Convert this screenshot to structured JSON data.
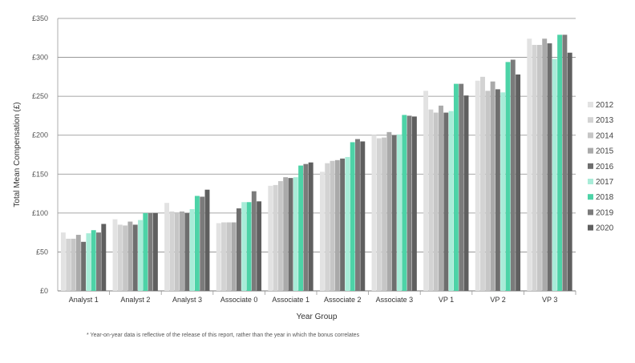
{
  "chart_data": {
    "type": "bar",
    "xlabel": "Year Group",
    "ylabel": "Total Mean Compensation (£)",
    "ylim": [
      0,
      350
    ],
    "yticks": [
      0,
      50,
      100,
      150,
      200,
      250,
      300,
      350
    ],
    "ytick_labels": [
      "£0",
      "£50",
      "£100",
      "£150",
      "£200",
      "£250",
      "£300",
      "£350"
    ],
    "grid": true,
    "legend_position": "right",
    "categories": [
      "Analyst 1",
      "Analyst 2",
      "Analyst 3",
      "Associate 0",
      "Associate 1",
      "Associate 2",
      "Associate 3",
      "VP 1",
      "VP 2",
      "VP 3"
    ],
    "series": [
      {
        "name": "2012",
        "color": "#e2e2e2",
        "values": [
          75,
          92,
          113,
          87,
          135,
          153,
          200,
          257,
          270,
          324
        ]
      },
      {
        "name": "2013",
        "color": "#d3d3d3",
        "values": [
          67,
          85,
          102,
          88,
          136,
          164,
          196,
          233,
          275,
          316
        ]
      },
      {
        "name": "2014",
        "color": "#c6c6c6",
        "values": [
          67,
          84,
          101,
          88,
          141,
          167,
          197,
          229,
          257,
          316
        ]
      },
      {
        "name": "2015",
        "color": "#aaaaaa",
        "values": [
          72,
          89,
          102,
          88,
          146,
          168,
          204,
          238,
          269,
          324
        ]
      },
      {
        "name": "2016",
        "color": "#6e6e6e",
        "values": [
          63,
          85,
          100,
          106,
          145,
          170,
          200,
          229,
          259,
          318
        ]
      },
      {
        "name": "2017",
        "color": "#a8ecd8",
        "values": [
          74,
          91,
          105,
          114,
          146,
          172,
          201,
          231,
          255,
          298
        ]
      },
      {
        "name": "2018",
        "color": "#4dd3a7",
        "values": [
          78,
          100,
          122,
          114,
          161,
          191,
          226,
          266,
          294,
          329
        ]
      },
      {
        "name": "2019",
        "color": "#7b7b7b",
        "values": [
          75,
          100,
          121,
          128,
          163,
          195,
          225,
          266,
          297,
          329
        ]
      },
      {
        "name": "2020",
        "color": "#5f5f5f",
        "values": [
          86,
          100,
          130,
          115,
          165,
          192,
          224,
          251,
          278,
          306
        ]
      }
    ]
  },
  "footnote": "* Year-on-year data is reflective of the release of this report, rather than the year in which the bonus correlates"
}
